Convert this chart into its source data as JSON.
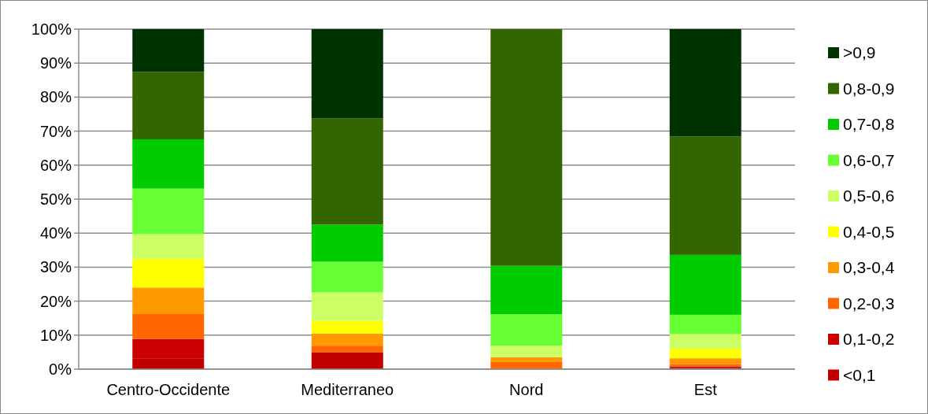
{
  "chart_data": {
    "type": "bar",
    "stacked": true,
    "categories": [
      "Centro-Occidente",
      "Mediterraneo",
      "Nord",
      "Est"
    ],
    "series": [
      {
        "name": "<0,1",
        "color": "#c00000",
        "values": [
          3.2,
          5.0,
          0,
          0.4
        ]
      },
      {
        "name": "0,1-0,2",
        "color": "#cc0000",
        "values": [
          5.7,
          0,
          0,
          0.4
        ]
      },
      {
        "name": "0,2-0,3",
        "color": "#ff6600",
        "values": [
          7.3,
          1.9,
          2.1,
          0.7
        ]
      },
      {
        "name": "0,3-0,4",
        "color": "#ff9900",
        "values": [
          7.8,
          3.6,
          1.4,
          1.7
        ]
      },
      {
        "name": "0,4-0,5",
        "color": "#ffff00",
        "values": [
          8.4,
          3.7,
          0,
          2.8
        ]
      },
      {
        "name": "0,5-0,6",
        "color": "#ccff66",
        "values": [
          7.3,
          8.4,
          3.4,
          4.3
        ]
      },
      {
        "name": "0,6-0,7",
        "color": "#66ff33",
        "values": [
          13.4,
          9.0,
          9.3,
          5.7
        ]
      },
      {
        "name": "0,7-0,8",
        "color": "#00cc00",
        "values": [
          14.5,
          10.9,
          14.2,
          17.6
        ]
      },
      {
        "name": "0,8-0,9",
        "color": "#336600",
        "values": [
          19.8,
          31.3,
          69.6,
          34.8
        ]
      },
      {
        "name": ">0,9",
        "color": "#003300",
        "values": [
          12.6,
          26.2,
          0,
          31.6
        ]
      }
    ],
    "ylim": [
      0,
      100
    ],
    "yticks": [
      {
        "value": 0,
        "label": "0%"
      },
      {
        "value": 10,
        "label": "10%"
      },
      {
        "value": 20,
        "label": "20%"
      },
      {
        "value": 30,
        "label": "30%"
      },
      {
        "value": 40,
        "label": "40%"
      },
      {
        "value": 50,
        "label": "50%"
      },
      {
        "value": 60,
        "label": "60%"
      },
      {
        "value": 70,
        "label": "70%"
      },
      {
        "value": 80,
        "label": "80%"
      },
      {
        "value": 90,
        "label": "90%"
      },
      {
        "value": 100,
        "label": "100%"
      }
    ],
    "grid": "y",
    "legend": "right"
  }
}
